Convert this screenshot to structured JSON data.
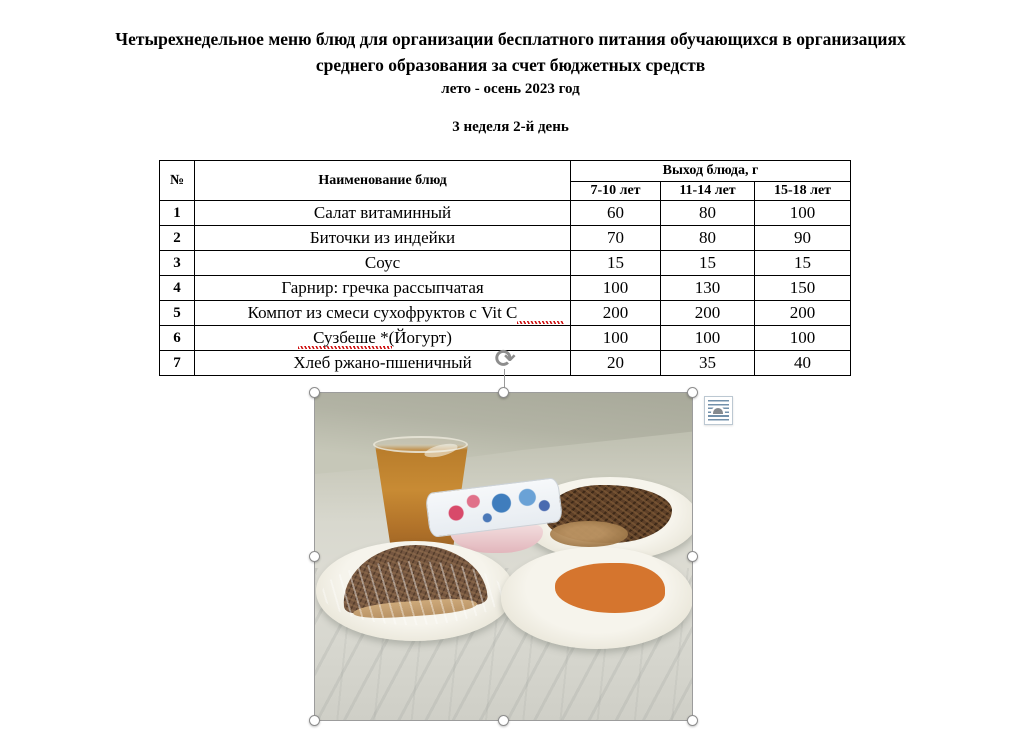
{
  "page": {
    "title_line1": "Четырехнедельное меню блюд для организации бесплатного питания обучающихся в организациях",
    "title_line2": "среднего образования за счет бюджетных средств",
    "title_line3": "лето - осень 2023 год",
    "day_heading": "3 неделя 2-й день"
  },
  "menu_table": {
    "col_num": "№",
    "col_dish": "Наименование блюд",
    "col_output": "Выход блюда, г",
    "age_groups": [
      "7-10 лет",
      "11-14 лет",
      "15-18 лет"
    ],
    "rows": [
      {
        "num": "1",
        "dish": "Салат витаминный",
        "g_7_10": "60",
        "g_11_14": "80",
        "g_15_18": "100"
      },
      {
        "num": "2",
        "dish": "Биточки из индейки",
        "g_7_10": "70",
        "g_11_14": "80",
        "g_15_18": "90"
      },
      {
        "num": "3",
        "dish": "Соус",
        "g_7_10": "15",
        "g_11_14": "15",
        "g_15_18": "15"
      },
      {
        "num": "4",
        "dish": "Гарнир: гречка рассыпчатая",
        "g_7_10": "100",
        "g_11_14": "130",
        "g_15_18": "150"
      },
      {
        "num": "5",
        "dish": "Компот из смеси сухофруктов с Vit C",
        "g_7_10": "200",
        "g_11_14": "200",
        "g_15_18": "200"
      },
      {
        "num": "6",
        "dish": "Сузбеше *(Йогурт)",
        "g_7_10": "100",
        "g_11_14": "100",
        "g_15_18": "100"
      },
      {
        "num": "7",
        "dish": "Хлеб ржано-пшеничный",
        "g_7_10": "20",
        "g_11_14": "35",
        "g_15_18": "40"
      }
    ]
  },
  "photo": {
    "items": [
      "compote-glass",
      "yogurt-cup",
      "buckwheat-with-cutlet-plate",
      "bread-plate",
      "carrot-salad-plate"
    ],
    "rotate_glyph": "⟳"
  },
  "colors": {
    "spellcheck_red": "#cf1010",
    "handle_border": "#8d8d8d",
    "layout_icon_blue": "#7391ab",
    "compote_amber": "#c88b34",
    "salad_orange": "#d5752e",
    "bread_brown": "#755640",
    "buckwheat_brown": "#5e4028",
    "yogurt_pink": "#e2b6bc",
    "marble_light": "#d8d8ce",
    "marble_dark": "#b2b3a4"
  }
}
